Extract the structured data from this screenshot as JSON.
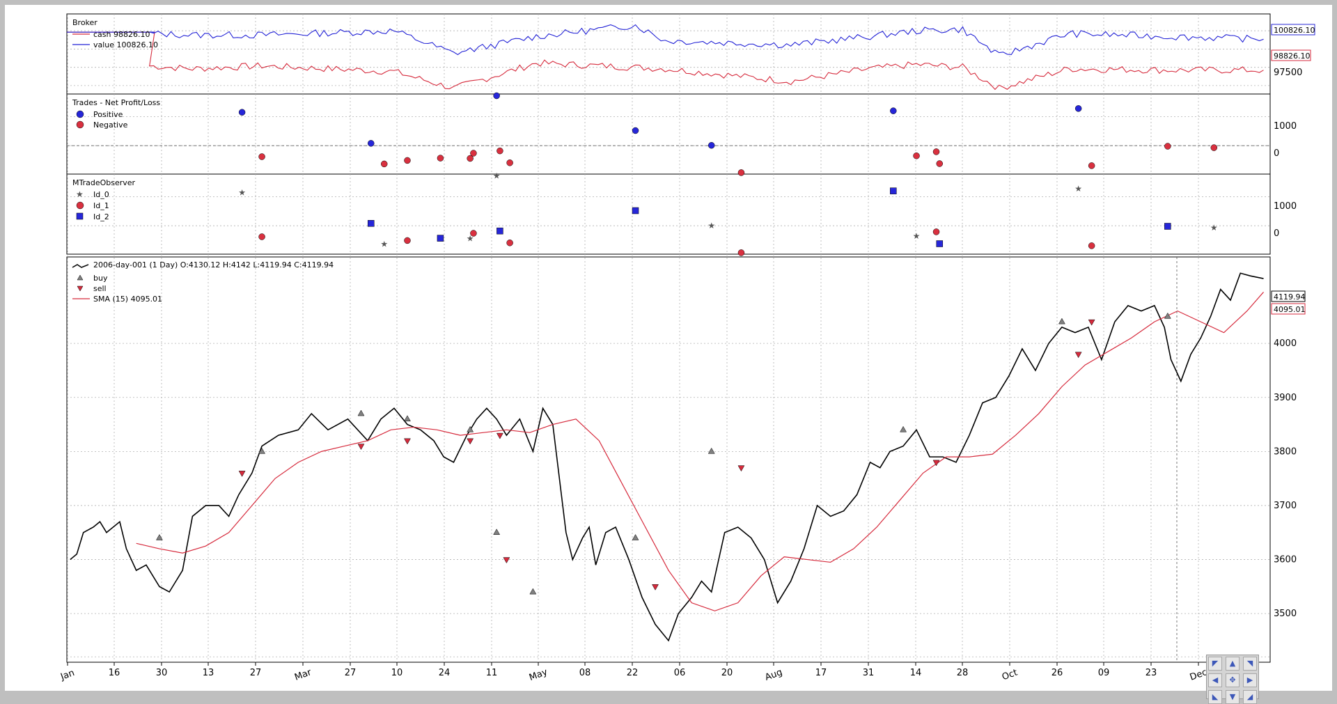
{
  "chart_data": [
    {
      "type": "line",
      "title": "Broker",
      "series": [
        {
          "name": "cash 98826.10",
          "color": "#d62a3c",
          "label_value": "98826.10"
        },
        {
          "name": "value 100826.10",
          "color": "#2323d6",
          "label_value": "100826.10"
        }
      ],
      "yticks": [
        "97500"
      ],
      "ylim": [
        96900,
        102600
      ],
      "dates": [
        "2006-01-02",
        "2006-01-26",
        "2006-02-08",
        "2006-03-01",
        "2006-04-10",
        "2006-04-28",
        "2006-05-23",
        "2006-06-22",
        "2006-07-01",
        "2006-08-08",
        "2006-09-01",
        "2006-09-15",
        "2006-09-29",
        "2006-10-10",
        "2006-10-31",
        "2006-11-30",
        "2006-12-29"
      ],
      "cash": [
        null,
        98900,
        98700,
        98900,
        98500,
        97300,
        99100,
        98800,
        98700,
        97800,
        98700,
        99000,
        98800,
        97300,
        98700,
        98600,
        98600
      ],
      "value": [
        null,
        101200,
        101100,
        101100,
        101400,
        99800,
        101000,
        101800,
        100700,
        100400,
        101000,
        101400,
        101500,
        99600,
        101200,
        101000,
        100800
      ]
    },
    {
      "type": "scatter",
      "title": "Trades - Net Profit/Loss",
      "legend": [
        "Positive",
        "Negative"
      ],
      "colors": {
        "positive": "#2626d9",
        "negative": "#d9303f"
      },
      "yticks": [
        "1000",
        "0"
      ],
      "positive": [
        {
          "x": "2006-02-23",
          "y": 1150
        },
        {
          "x": "2006-04-03",
          "y": 80
        },
        {
          "x": "2006-05-11",
          "y": 1720
        },
        {
          "x": "2006-06-22",
          "y": 520
        },
        {
          "x": "2006-07-15",
          "y": 10
        },
        {
          "x": "2006-09-08",
          "y": 1200
        },
        {
          "x": "2006-11-03",
          "y": 1280
        }
      ],
      "negative": [
        {
          "x": "2006-03-01",
          "y": -380
        },
        {
          "x": "2006-04-07",
          "y": -630
        },
        {
          "x": "2006-04-14",
          "y": -510
        },
        {
          "x": "2006-04-24",
          "y": -430
        },
        {
          "x": "2006-05-03",
          "y": -440
        },
        {
          "x": "2006-05-04",
          "y": -260
        },
        {
          "x": "2006-05-12",
          "y": -180
        },
        {
          "x": "2006-05-15",
          "y": -590
        },
        {
          "x": "2006-07-24",
          "y": -930
        },
        {
          "x": "2006-09-15",
          "y": -350
        },
        {
          "x": "2006-09-21",
          "y": -210
        },
        {
          "x": "2006-09-22",
          "y": -620
        },
        {
          "x": "2006-11-07",
          "y": -690
        },
        {
          "x": "2006-11-30",
          "y": -20
        },
        {
          "x": "2006-12-14",
          "y": -70
        }
      ]
    },
    {
      "type": "scatter",
      "title": "MTradeObserver",
      "legend": [
        "Id_0",
        "Id_1",
        "Id_2"
      ],
      "yticks": [
        "1000",
        "0"
      ],
      "id_0": [
        {
          "x": "2006-02-23",
          "y": 1150
        },
        {
          "x": "2006-04-07",
          "y": -630
        },
        {
          "x": "2006-05-03",
          "y": -440
        },
        {
          "x": "2006-05-11",
          "y": 1720
        },
        {
          "x": "2006-07-15",
          "y": 10
        },
        {
          "x": "2006-09-15",
          "y": -350
        },
        {
          "x": "2006-11-03",
          "y": 1280
        },
        {
          "x": "2006-12-14",
          "y": -70
        }
      ],
      "id_1": [
        {
          "x": "2006-03-01",
          "y": -380
        },
        {
          "x": "2006-04-14",
          "y": -510
        },
        {
          "x": "2006-05-04",
          "y": -260
        },
        {
          "x": "2006-05-15",
          "y": -590
        },
        {
          "x": "2006-07-24",
          "y": -930
        },
        {
          "x": "2006-09-21",
          "y": -210
        },
        {
          "x": "2006-11-07",
          "y": -690
        }
      ],
      "id_2": [
        {
          "x": "2006-04-03",
          "y": 80
        },
        {
          "x": "2006-04-24",
          "y": -430
        },
        {
          "x": "2006-05-12",
          "y": -180
        },
        {
          "x": "2006-06-22",
          "y": 520
        },
        {
          "x": "2006-09-08",
          "y": 1200
        },
        {
          "x": "2006-09-22",
          "y": -620
        },
        {
          "x": "2006-11-30",
          "y": -20
        }
      ]
    },
    {
      "type": "line",
      "title": "2006-day-001 (1 Day) O:4130.12 H:4142 L:4119.94 C:4119.94",
      "legend": [
        "2006-day-001 (1 Day) O:4130.12 H:4142 L:4119.94 C:4119.94",
        "buy",
        "sell",
        "SMA (15) 4095.01"
      ],
      "last_close_label": "4119.94",
      "sma_label": "4095.01",
      "colors": {
        "close": "#000000",
        "sma": "#d62a3c",
        "buy": "#808080",
        "sell": "#d62a3c"
      },
      "ylim": [
        3410,
        4160
      ],
      "yticks": [
        3500,
        3600,
        3700,
        3800,
        3900,
        4000
      ],
      "xticks": [
        "Jan",
        "16",
        "30",
        "13",
        "27",
        "Mar",
        "27",
        "10",
        "24",
        "11",
        "May",
        "08",
        "22",
        "06",
        "20",
        "Aug",
        "17",
        "31",
        "14",
        "28",
        "Oct",
        "26",
        "09",
        "23",
        "Dec"
      ],
      "close_dates": [
        "2006-01-02",
        "2006-01-04",
        "2006-01-06",
        "2006-01-09",
        "2006-01-11",
        "2006-01-13",
        "2006-01-17",
        "2006-01-19",
        "2006-01-22",
        "2006-01-25",
        "2006-01-29",
        "2006-02-01",
        "2006-02-05",
        "2006-02-08",
        "2006-02-12",
        "2006-02-16",
        "2006-02-19",
        "2006-02-22",
        "2006-02-26",
        "2006-03-01",
        "2006-03-06",
        "2006-03-12",
        "2006-03-16",
        "2006-03-21",
        "2006-03-27",
        "2006-04-02",
        "2006-04-06",
        "2006-04-10",
        "2006-04-14",
        "2006-04-18",
        "2006-04-22",
        "2006-04-25",
        "2006-04-28",
        "2006-05-02",
        "2006-05-05",
        "2006-05-08",
        "2006-05-11",
        "2006-05-14",
        "2006-05-18",
        "2006-05-22",
        "2006-05-25",
        "2006-05-28",
        "2006-06-01",
        "2006-06-03",
        "2006-06-06",
        "2006-06-08",
        "2006-06-10",
        "2006-06-13",
        "2006-06-16",
        "2006-06-20",
        "2006-06-24",
        "2006-06-28",
        "2006-07-02",
        "2006-07-05",
        "2006-07-09",
        "2006-07-12",
        "2006-07-15",
        "2006-07-19",
        "2006-07-23",
        "2006-07-27",
        "2006-07-31",
        "2006-08-04",
        "2006-08-08",
        "2006-08-12",
        "2006-08-16",
        "2006-08-20",
        "2006-08-24",
        "2006-08-28",
        "2006-09-01",
        "2006-09-04",
        "2006-09-07",
        "2006-09-11",
        "2006-09-15",
        "2006-09-19",
        "2006-09-23",
        "2006-09-27",
        "2006-10-01",
        "2006-10-05",
        "2006-10-09",
        "2006-10-13",
        "2006-10-17",
        "2006-10-21",
        "2006-10-25",
        "2006-10-29",
        "2006-11-02",
        "2006-11-06",
        "2006-11-10",
        "2006-11-14",
        "2006-11-18",
        "2006-11-22",
        "2006-11-26",
        "2006-11-29",
        "2006-12-01",
        "2006-12-04",
        "2006-12-07",
        "2006-12-10",
        "2006-12-13",
        "2006-12-16",
        "2006-12-19",
        "2006-12-22",
        "2006-12-25",
        "2006-12-29"
      ],
      "close_values": [
        3600,
        3610,
        3650,
        3660,
        3670,
        3650,
        3670,
        3620,
        3580,
        3590,
        3550,
        3540,
        3580,
        3680,
        3700,
        3700,
        3680,
        3720,
        3760,
        3810,
        3830,
        3840,
        3870,
        3840,
        3860,
        3820,
        3860,
        3880,
        3850,
        3840,
        3820,
        3790,
        3780,
        3830,
        3860,
        3880,
        3860,
        3830,
        3860,
        3800,
        3880,
        3850,
        3650,
        3600,
        3640,
        3660,
        3590,
        3650,
        3660,
        3600,
        3530,
        3480,
        3450,
        3500,
        3530,
        3560,
        3540,
        3650,
        3660,
        3640,
        3600,
        3520,
        3560,
        3620,
        3700,
        3680,
        3690,
        3720,
        3780,
        3770,
        3800,
        3810,
        3840,
        3790,
        3790,
        3780,
        3830,
        3890,
        3900,
        3940,
        3990,
        3950,
        4000,
        4030,
        4020,
        4030,
        3970,
        4040,
        4070,
        4060,
        4070,
        4030,
        3970,
        3930,
        3980,
        4010,
        4050,
        4100,
        4080,
        4130,
        4125,
        4119.94
      ],
      "sma_dates": [
        "2006-01-22",
        "2006-01-29",
        "2006-02-05",
        "2006-02-12",
        "2006-02-19",
        "2006-02-26",
        "2006-03-05",
        "2006-03-12",
        "2006-03-19",
        "2006-03-26",
        "2006-04-02",
        "2006-04-09",
        "2006-04-16",
        "2006-04-23",
        "2006-04-30",
        "2006-05-07",
        "2006-05-14",
        "2006-05-21",
        "2006-05-28",
        "2006-06-04",
        "2006-06-11",
        "2006-06-18",
        "2006-06-25",
        "2006-07-02",
        "2006-07-09",
        "2006-07-16",
        "2006-07-23",
        "2006-07-30",
        "2006-08-06",
        "2006-08-13",
        "2006-08-20",
        "2006-08-27",
        "2006-09-03",
        "2006-09-10",
        "2006-09-17",
        "2006-09-24",
        "2006-10-01",
        "2006-10-08",
        "2006-10-15",
        "2006-10-22",
        "2006-10-29",
        "2006-11-05",
        "2006-11-12",
        "2006-11-19",
        "2006-11-26",
        "2006-12-03",
        "2006-12-10",
        "2006-12-17",
        "2006-12-24",
        "2006-12-29"
      ],
      "sma_values": [
        3630,
        3620,
        3612,
        3625,
        3650,
        3700,
        3750,
        3780,
        3800,
        3810,
        3820,
        3840,
        3845,
        3840,
        3830,
        3835,
        3840,
        3835,
        3850,
        3860,
        3820,
        3740,
        3660,
        3580,
        3520,
        3505,
        3520,
        3570,
        3605,
        3600,
        3595,
        3620,
        3660,
        3710,
        3760,
        3790,
        3790,
        3795,
        3830,
        3870,
        3920,
        3960,
        3985,
        4010,
        4040,
        4060,
        4040,
        4020,
        4060,
        4095
      ],
      "buy": [
        {
          "x": "2006-01-29",
          "y": 3640
        },
        {
          "x": "2006-03-01",
          "y": 3800
        },
        {
          "x": "2006-03-31",
          "y": 3870
        },
        {
          "x": "2006-04-14",
          "y": 3860
        },
        {
          "x": "2006-05-03",
          "y": 3840
        },
        {
          "x": "2006-05-11",
          "y": 3650
        },
        {
          "x": "2006-05-22",
          "y": 3540
        },
        {
          "x": "2006-06-22",
          "y": 3640
        },
        {
          "x": "2006-07-15",
          "y": 3800
        },
        {
          "x": "2006-09-11",
          "y": 3840
        },
        {
          "x": "2006-10-29",
          "y": 4040
        },
        {
          "x": "2006-11-30",
          "y": 4050
        }
      ],
      "sell": [
        {
          "x": "2006-02-23",
          "y": 3760
        },
        {
          "x": "2006-03-31",
          "y": 3810
        },
        {
          "x": "2006-04-14",
          "y": 3820
        },
        {
          "x": "2006-05-03",
          "y": 3820
        },
        {
          "x": "2006-05-12",
          "y": 3830
        },
        {
          "x": "2006-05-14",
          "y": 3600
        },
        {
          "x": "2006-06-28",
          "y": 3550
        },
        {
          "x": "2006-07-24",
          "y": 3770
        },
        {
          "x": "2006-09-21",
          "y": 3780
        },
        {
          "x": "2006-11-03",
          "y": 3980
        },
        {
          "x": "2006-11-07",
          "y": 4040
        }
      ]
    }
  ]
}
